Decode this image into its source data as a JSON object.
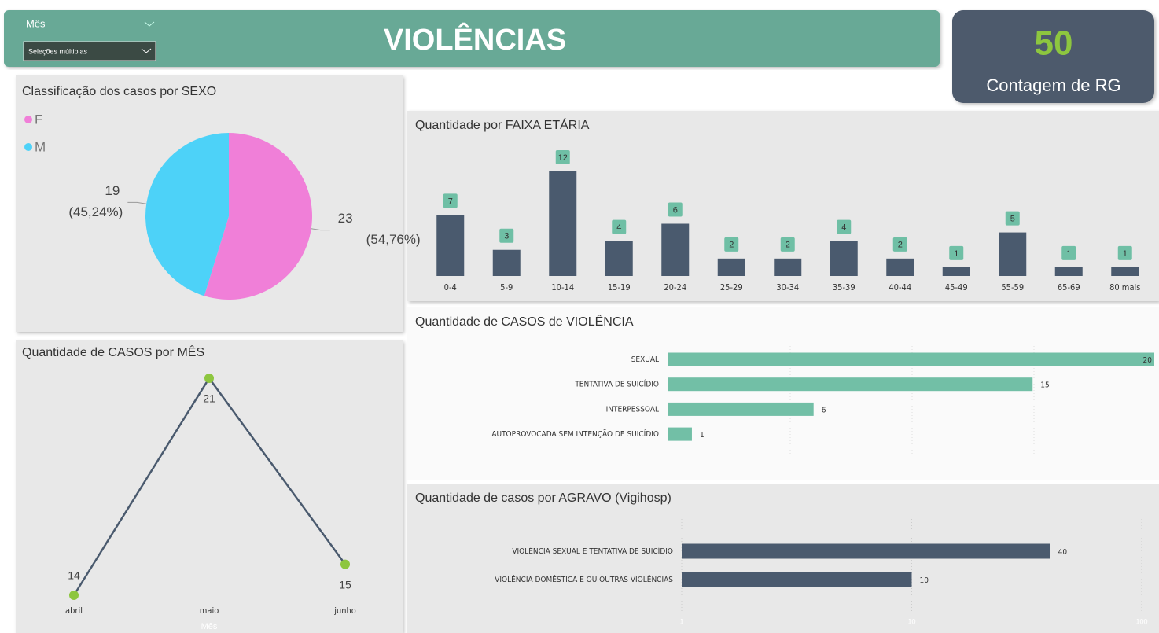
{
  "header": {
    "title": "VIOLÊNCIAS",
    "filter_label": "Mês",
    "filter_value": "Seleções múltiplas"
  },
  "kpi": {
    "value": 50,
    "label": "Contagem de RG"
  },
  "chart_data": [
    {
      "type": "pie",
      "title": "Classificação dos casos por SEXO",
      "categories": [
        "F",
        "M"
      ],
      "values": [
        23,
        19
      ],
      "colors": [
        "#f07fd8",
        "#4dd2f8"
      ],
      "percent_labels": [
        "(54,76%)",
        "(45,24%)"
      ]
    },
    {
      "type": "bar",
      "title": "Quantidade por FAIXA ETÁRIA",
      "categories": [
        "0-4",
        "5-9",
        "10-14",
        "15-19",
        "20-24",
        "25-29",
        "30-34",
        "35-39",
        "40-44",
        "45-49",
        "55-59",
        "65-69",
        "80 mais"
      ],
      "values": [
        7,
        3,
        12,
        4,
        6,
        2,
        2,
        4,
        2,
        1,
        5,
        1,
        1
      ],
      "color": "#4a5a6e",
      "label_color": "#6fbfa5"
    },
    {
      "type": "hbar",
      "title": "Quantidade de CASOS de VIOLÊNCIA",
      "categories": [
        "SEXUAL",
        "TENTATIVA DE SUICÍDIO",
        "INTERPESSOAL",
        "AUTOPROVOCADA SEM INTENÇÃO DE SUICÍDIO"
      ],
      "values": [
        20,
        15,
        6,
        1
      ],
      "color": "#72bfa6"
    },
    {
      "type": "hbar",
      "title": "Quantidade de casos por AGRAVO (Vigihosp)",
      "categories": [
        "VIOLÊNCIA SEXUAL E TENTATIVA DE SUICÍDIO",
        "VIOLÊNCIA DOMÉSTICA E OU OUTRAS VIOLÊNCIAS"
      ],
      "values": [
        40,
        10
      ],
      "color": "#4a5a6e",
      "log_scale": true,
      "xlim": [
        1,
        100
      ],
      "xticks": [
        1,
        10,
        100
      ]
    },
    {
      "type": "line",
      "title": "Quantidade de CASOS por MÊS",
      "x_label": "Mês",
      "categories": [
        "abril",
        "maio",
        "junho"
      ],
      "values": [
        14,
        21,
        15
      ],
      "color": "#4a5a6e",
      "marker_color": "#8dc63f"
    }
  ]
}
